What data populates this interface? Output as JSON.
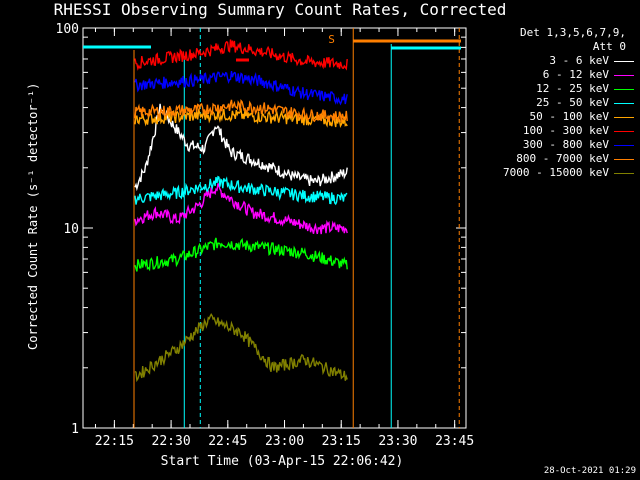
{
  "title": "RHESSI Observing Summary Count Rates, Corrected",
  "xlabel": "Start Time (03-Apr-15 22:06:42)",
  "ylabel": "Corrected Count Rate (s⁻¹ detector⁻¹)",
  "footer": "28-Oct-2021 01:29",
  "legend": {
    "header1": "Det 1,3,5,6,7,9,",
    "header2": "Att 0"
  },
  "flag_s": "S",
  "chart_data": {
    "type": "line",
    "x_ticks": [
      "22:15",
      "22:30",
      "22:45",
      "23:00",
      "23:15",
      "23:30",
      "23:45"
    ],
    "y_ticks": [
      "1",
      "10",
      "100"
    ],
    "y_scale": "log",
    "ylim": [
      1,
      100
    ],
    "xlim": [
      "22:06:42",
      "23:48:00"
    ],
    "grid": false,
    "legend_position": "top-right",
    "data_interval": [
      "22:20",
      "23:15"
    ],
    "series": [
      {
        "name": "3 - 6 keV",
        "color": "#ffffff",
        "values": [
          [
            0,
            16
          ],
          [
            0.05,
            20
          ],
          [
            0.12,
            40
          ],
          [
            0.25,
            26
          ],
          [
            0.33,
            25
          ],
          [
            0.38,
            33
          ],
          [
            0.45,
            24
          ],
          [
            0.55,
            22
          ],
          [
            0.65,
            20
          ],
          [
            0.75,
            18
          ],
          [
            0.85,
            17
          ],
          [
            1,
            19
          ]
        ]
      },
      {
        "name": "6 - 12 keV",
        "color": "#ff00ff",
        "values": [
          [
            0,
            11
          ],
          [
            0.1,
            12
          ],
          [
            0.2,
            11
          ],
          [
            0.3,
            13
          ],
          [
            0.38,
            16
          ],
          [
            0.45,
            14
          ],
          [
            0.55,
            12
          ],
          [
            0.7,
            11
          ],
          [
            0.85,
            10
          ],
          [
            1,
            10
          ]
        ]
      },
      {
        "name": "12 - 25 keV",
        "color": "#00ff00",
        "values": [
          [
            0,
            6.5
          ],
          [
            0.2,
            7
          ],
          [
            0.4,
            8.5
          ],
          [
            0.6,
            8
          ],
          [
            0.8,
            7.5
          ],
          [
            1,
            6.5
          ]
        ]
      },
      {
        "name": "25 - 50 keV",
        "color": "#00ffff",
        "values": [
          [
            0,
            14
          ],
          [
            0.2,
            15
          ],
          [
            0.3,
            16
          ],
          [
            0.4,
            17
          ],
          [
            0.5,
            16
          ],
          [
            0.6,
            15.5
          ],
          [
            0.8,
            14.5
          ],
          [
            1,
            14
          ]
        ]
      },
      {
        "name": "50 - 100 keV",
        "color": "#ffa500",
        "values": [
          [
            0,
            35
          ],
          [
            0.2,
            36
          ],
          [
            0.4,
            37
          ],
          [
            0.6,
            36
          ],
          [
            0.8,
            35
          ],
          [
            1,
            34
          ]
        ]
      },
      {
        "name": "100 - 300 keV",
        "color": "#ff0000",
        "values": [
          [
            0,
            67
          ],
          [
            0.3,
            75
          ],
          [
            0.45,
            82
          ],
          [
            0.6,
            76
          ],
          [
            0.8,
            68
          ],
          [
            1,
            66
          ]
        ]
      },
      {
        "name": "300 - 800 keV",
        "color": "#0000ff",
        "values": [
          [
            0,
            52
          ],
          [
            0.3,
            55
          ],
          [
            0.45,
            58
          ],
          [
            0.6,
            54
          ],
          [
            0.8,
            47
          ],
          [
            1,
            44
          ]
        ]
      },
      {
        "name": "800 - 7000 keV",
        "color": "#ff7f00",
        "values": [
          [
            0,
            38
          ],
          [
            0.3,
            39
          ],
          [
            0.45,
            41
          ],
          [
            0.6,
            40
          ],
          [
            0.8,
            37
          ],
          [
            1,
            36
          ]
        ]
      },
      {
        "name": "7000 - 15000 keV",
        "color": "#808000",
        "values": [
          [
            0,
            1.8
          ],
          [
            0.2,
            2.5
          ],
          [
            0.35,
            3.5
          ],
          [
            0.5,
            3
          ],
          [
            0.65,
            2
          ],
          [
            0.8,
            2.2
          ],
          [
            1,
            1.8
          ]
        ]
      }
    ]
  }
}
